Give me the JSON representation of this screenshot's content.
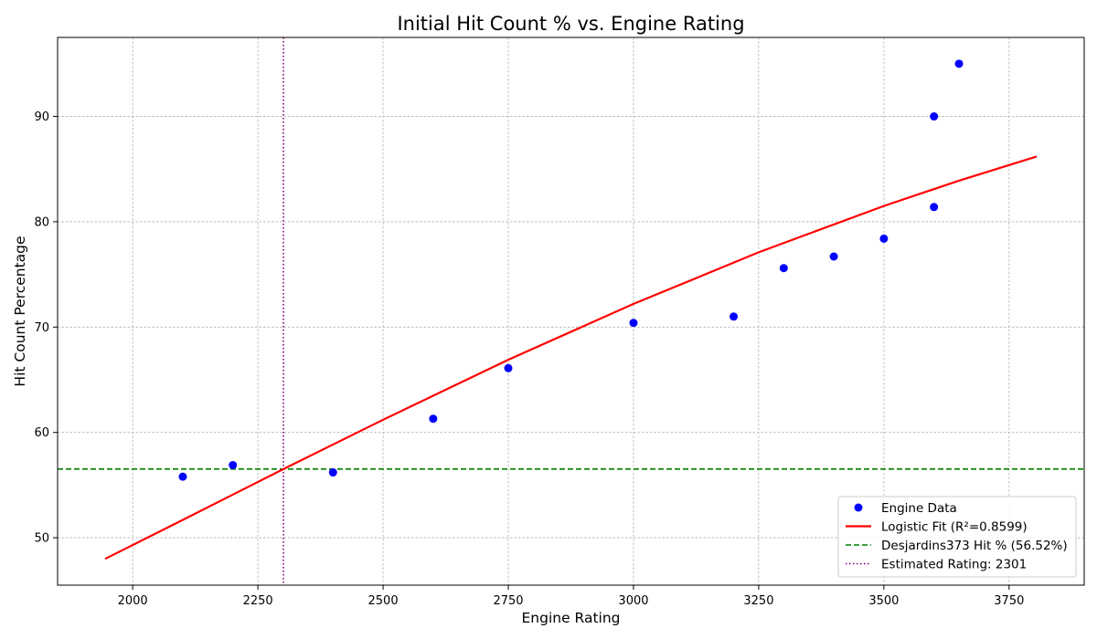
{
  "chart_data": {
    "type": "scatter",
    "title": "Initial Hit Count % vs. Engine Rating",
    "xlabel": "Engine Rating",
    "ylabel": "Hit Count Percentage",
    "xlim": [
      1850,
      3900
    ],
    "ylim": [
      45.5,
      97.5
    ],
    "xticks": [
      2000,
      2250,
      2500,
      2750,
      3000,
      3250,
      3500,
      3750
    ],
    "yticks": [
      50,
      60,
      70,
      80,
      90
    ],
    "grid": true,
    "legend_position": "lower-right",
    "series": [
      {
        "name": "Engine Data",
        "kind": "scatter",
        "color": "#0000ff",
        "points": [
          {
            "x": 2100,
            "y": 55.8
          },
          {
            "x": 2200,
            "y": 56.9
          },
          {
            "x": 2400,
            "y": 56.2
          },
          {
            "x": 2600,
            "y": 61.3
          },
          {
            "x": 2750,
            "y": 66.1
          },
          {
            "x": 3000,
            "y": 70.4
          },
          {
            "x": 3200,
            "y": 71.0
          },
          {
            "x": 3300,
            "y": 75.6
          },
          {
            "x": 3400,
            "y": 76.7
          },
          {
            "x": 3500,
            "y": 78.4
          },
          {
            "x": 3600,
            "y": 81.4
          },
          {
            "x": 3600,
            "y": 90.0
          },
          {
            "x": 3650,
            "y": 95.0
          }
        ]
      },
      {
        "name": "Logistic Fit (R²=0.8599)",
        "kind": "line",
        "color": "#ff0000",
        "points": [
          {
            "x": 1945,
            "y": 48.0
          },
          {
            "x": 2100,
            "y": 51.7
          },
          {
            "x": 2300,
            "y": 56.5
          },
          {
            "x": 2500,
            "y": 61.2
          },
          {
            "x": 2750,
            "y": 66.9
          },
          {
            "x": 3000,
            "y": 72.2
          },
          {
            "x": 3250,
            "y": 77.1
          },
          {
            "x": 3500,
            "y": 81.5
          },
          {
            "x": 3650,
            "y": 83.9
          },
          {
            "x": 3805,
            "y": 86.2
          }
        ]
      },
      {
        "name": "Desjardins373 Hit % (56.52%)",
        "kind": "hline",
        "color": "#008000",
        "y": 56.52
      },
      {
        "name": "Estimated Rating: 2301",
        "kind": "vline",
        "color": "#800080",
        "x": 2301
      }
    ]
  }
}
